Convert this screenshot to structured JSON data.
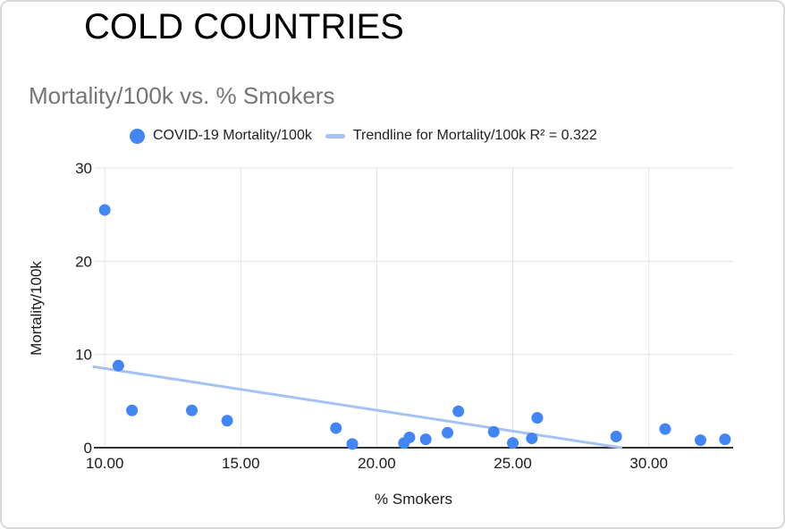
{
  "page_title": "COLD COUNTRIES",
  "chart": {
    "subtitle": "Mortality/100k vs. % Smokers",
    "legend": [
      {
        "marker": "dot-marker-icon",
        "label": "COVID-19 Mortality/100k"
      },
      {
        "marker": "line-marker-icon",
        "label": "Trendline for Mortality/100k R² = 0.322"
      }
    ]
  },
  "colors": {
    "marker": "#4285F4",
    "trendline": "#A4C2F4",
    "grid": "#e2e2e2",
    "axis": "#333333",
    "tick_text": "#1a1a1a"
  },
  "chart_data": {
    "type": "scatter",
    "title": "Mortality/100k vs. % Smokers",
    "xlabel": "% Smokers",
    "ylabel": "Mortality/100k",
    "xlim": [
      9.6,
      33.1
    ],
    "ylim": [
      0,
      30
    ],
    "x_ticks": [
      10,
      15,
      20,
      25,
      30
    ],
    "x_tick_labels": [
      "10.00",
      "15.00",
      "20.00",
      "25.00",
      "30.00"
    ],
    "y_ticks": [
      0,
      10,
      20,
      30
    ],
    "y_tick_labels": [
      "0",
      "10",
      "20",
      "30"
    ],
    "grid": true,
    "legend_position": "top",
    "series": [
      {
        "name": "COVID-19 Mortality/100k",
        "points": [
          [
            10.0,
            25.5
          ],
          [
            10.5,
            8.8
          ],
          [
            11.0,
            4.0
          ],
          [
            13.2,
            4.0
          ],
          [
            14.5,
            2.9
          ],
          [
            18.5,
            2.1
          ],
          [
            19.1,
            0.4
          ],
          [
            21.0,
            0.5
          ],
          [
            21.2,
            1.1
          ],
          [
            21.8,
            0.9
          ],
          [
            22.6,
            1.6
          ],
          [
            23.0,
            3.9
          ],
          [
            24.3,
            1.7
          ],
          [
            25.0,
            0.5
          ],
          [
            25.7,
            1.0
          ],
          [
            25.9,
            3.2
          ],
          [
            28.8,
            1.2
          ],
          [
            30.6,
            2.0
          ],
          [
            31.9,
            0.8
          ],
          [
            32.8,
            0.9
          ]
        ]
      }
    ],
    "trendline": {
      "name": "Trendline for Mortality/100k",
      "r_squared": 0.322,
      "slope": -0.448,
      "intercept": 12.98
    }
  }
}
